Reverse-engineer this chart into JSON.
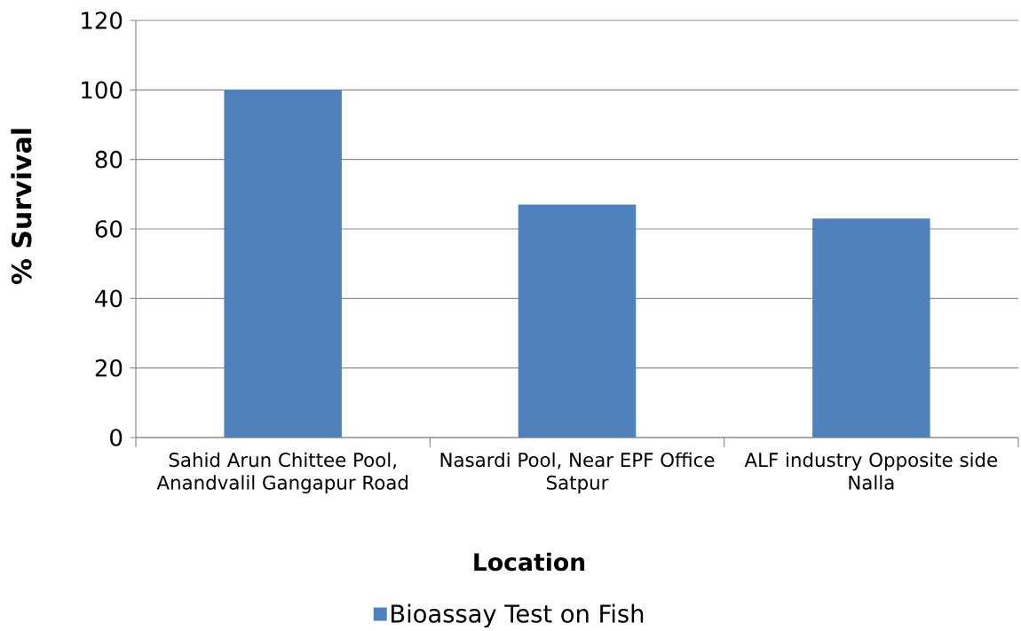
{
  "chart_data": {
    "type": "bar",
    "xlabel": "Location",
    "ylabel": "% Survival",
    "categories": [
      "Sahid Arun Chittee Pool, Anandvalil Gangapur Road",
      "Nasardi Pool, Near EPF Office Satpur",
      "ALF industry Opposite side Nalla"
    ],
    "series": [
      {
        "name": "Bioassay Test on Fish",
        "color": "#4f81bd",
        "values": [
          100,
          67,
          63
        ]
      }
    ],
    "ylim": [
      0,
      120
    ],
    "yticks": [
      0,
      20,
      40,
      60,
      80,
      100,
      120
    ],
    "grid": "y",
    "legend": "bottom"
  }
}
